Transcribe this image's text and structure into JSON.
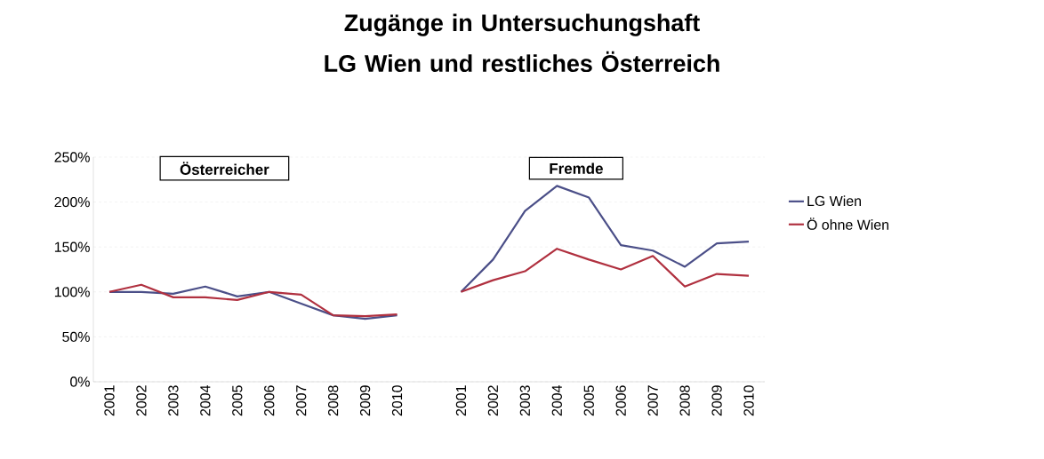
{
  "chart_data": {
    "type": "line",
    "title": "Zugänge in Untersuchungshaft LG Wien und restliches Österreich",
    "categories": [
      "2001",
      "2002",
      "2003",
      "2004",
      "2005",
      "2006",
      "2007",
      "2008",
      "2009",
      "2010",
      null,
      "2001",
      "2002",
      "2003",
      "2004",
      "2005",
      "2006",
      "2007",
      "2008",
      "2009",
      "2010"
    ],
    "series": [
      {
        "name": "LG Wien",
        "color": "#4b4f88",
        "values": [
          100,
          100,
          98,
          106,
          95,
          100,
          87,
          74,
          70,
          74,
          null,
          100,
          136,
          190,
          218,
          205,
          152,
          146,
          128,
          154,
          156
        ]
      },
      {
        "name": "Ö ohne Wien",
        "color": "#b0303f",
        "values": [
          100,
          108,
          94,
          94,
          91,
          100,
          97,
          74,
          73,
          75,
          null,
          100,
          113,
          123,
          148,
          136,
          125,
          140,
          106,
          120,
          118
        ]
      }
    ],
    "annotations": [
      "Österreicher",
      "Fremde"
    ],
    "ylim": [
      0,
      250
    ],
    "yticks": [
      {
        "value": 0,
        "label": "0%"
      },
      {
        "value": 50,
        "label": "50%"
      },
      {
        "value": 100,
        "label": "100%"
      },
      {
        "value": 150,
        "label": "150%"
      },
      {
        "value": 200,
        "label": "200%"
      },
      {
        "value": 250,
        "label": "250%"
      }
    ],
    "grid": "y",
    "legend": "right",
    "marker": "none",
    "line_style": "solid"
  }
}
